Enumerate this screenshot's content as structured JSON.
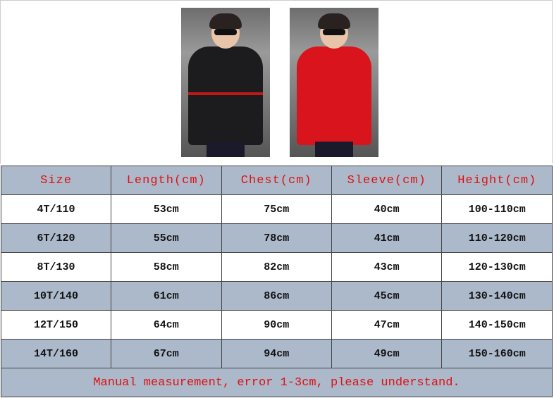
{
  "images": [
    {
      "name": "black-coat-photo",
      "color": "#1c1c1e"
    },
    {
      "name": "red-coat-photo",
      "color": "#d9141c"
    }
  ],
  "colors": {
    "header_bg": "#acb9ca",
    "header_text": "#e01010"
  },
  "table": {
    "headers": [
      "Size",
      "Length(cm)",
      "Chest(cm)",
      "Sleeve(cm)",
      "Height(cm)"
    ],
    "rows": [
      [
        "4T/110",
        "53cm",
        "75cm",
        "40cm",
        "100-110cm"
      ],
      [
        "6T/120",
        "55cm",
        "78cm",
        "41cm",
        "110-120cm"
      ],
      [
        "8T/130",
        "58cm",
        "82cm",
        "43cm",
        "120-130cm"
      ],
      [
        "10T/140",
        "61cm",
        "86cm",
        "45cm",
        "130-140cm"
      ],
      [
        "12T/150",
        "64cm",
        "90cm",
        "47cm",
        "140-150cm"
      ],
      [
        "14T/160",
        "67cm",
        "94cm",
        "49cm",
        "150-160cm"
      ]
    ],
    "note": "Manual measurement, error 1-3cm, please understand."
  }
}
